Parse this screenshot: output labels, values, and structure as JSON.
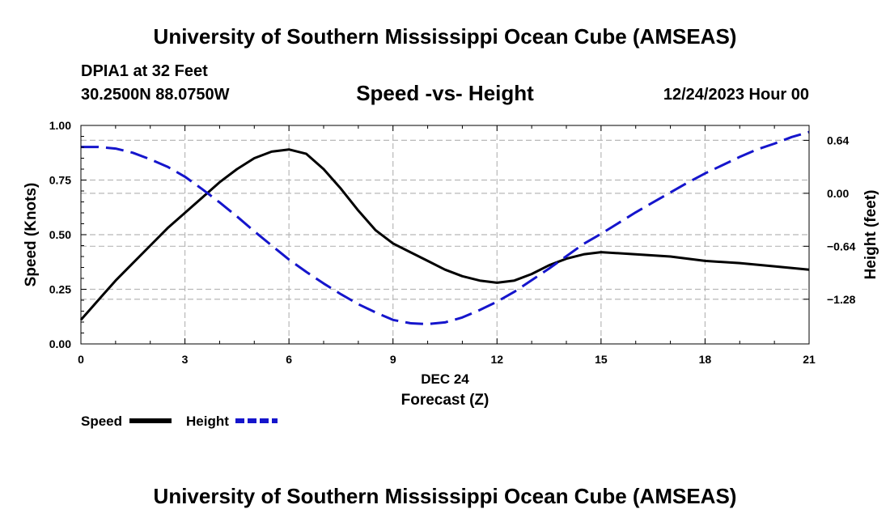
{
  "header": {
    "title": "University of Southern Mississippi Ocean Cube (AMSEAS)",
    "station": "DPIA1 at 32 Feet",
    "coords": "30.2500N  88.0750W",
    "subtitle": "Speed -vs- Height",
    "datetime": "12/24/2023 Hour 00"
  },
  "footer": {
    "title": "University of Southern Mississippi Ocean Cube (AMSEAS)"
  },
  "chart_data": {
    "type": "line",
    "title": "Speed -vs- Height",
    "xlabel_date": "DEC 24",
    "xlabel": "Forecast (Z)",
    "ylabel": "Speed (Knots)",
    "y2label": "Height (feet)",
    "xlim": [
      0,
      21
    ],
    "ylim": [
      0,
      1.0
    ],
    "y2lim": [
      -1.82,
      0.82
    ],
    "grid": true,
    "legend_position": "bottom-left",
    "x_ticks": [
      0,
      3,
      6,
      9,
      12,
      15,
      18,
      21
    ],
    "x_tick_labels": [
      "0",
      "3",
      "6",
      "9",
      "12",
      "15",
      "18",
      "21"
    ],
    "y_ticks": [
      0,
      0.25,
      0.5,
      0.75,
      1.0
    ],
    "y_tick_labels": [
      "0.00",
      "0.25",
      "0.50",
      "0.75",
      "1.00"
    ],
    "y2_ticks": [
      -1.28,
      -0.64,
      0.0,
      0.64
    ],
    "y2_tick_labels": [
      "−1.28",
      "−0.64",
      "0.00",
      "0.64"
    ],
    "series": [
      {
        "name": "Speed",
        "axis": "left",
        "color": "#000000",
        "dash": "solid",
        "x": [
          0,
          0.5,
          1,
          1.5,
          2,
          2.5,
          3,
          3.5,
          4,
          4.5,
          5,
          5.5,
          6,
          6.5,
          7,
          7.5,
          8,
          8.5,
          9,
          9.5,
          10,
          10.5,
          11,
          11.5,
          12,
          12.5,
          13,
          13.5,
          14,
          14.5,
          15,
          16,
          17,
          18,
          19,
          20,
          21
        ],
        "values": [
          0.11,
          0.2,
          0.29,
          0.37,
          0.45,
          0.53,
          0.6,
          0.67,
          0.74,
          0.8,
          0.85,
          0.88,
          0.89,
          0.87,
          0.8,
          0.71,
          0.61,
          0.52,
          0.46,
          0.42,
          0.38,
          0.34,
          0.31,
          0.29,
          0.28,
          0.29,
          0.32,
          0.36,
          0.39,
          0.41,
          0.42,
          0.41,
          0.4,
          0.38,
          0.37,
          0.355,
          0.34
        ]
      },
      {
        "name": "Height",
        "axis": "right",
        "color": "#1515cc",
        "dash": "dashed",
        "x": [
          0,
          0.5,
          1,
          1.5,
          2,
          2.5,
          3,
          3.5,
          4,
          4.5,
          5,
          5.5,
          6,
          6.5,
          7,
          7.5,
          8,
          8.5,
          9,
          9.5,
          10,
          10.5,
          11,
          11.5,
          12,
          12.5,
          13,
          13.5,
          14,
          14.5,
          15,
          15.5,
          16,
          16.5,
          17,
          17.5,
          18,
          18.5,
          19,
          19.5,
          20,
          20.5,
          21
        ],
        "values": [
          0.56,
          0.56,
          0.54,
          0.49,
          0.41,
          0.32,
          0.2,
          0.05,
          -0.11,
          -0.28,
          -0.46,
          -0.63,
          -0.8,
          -0.95,
          -1.09,
          -1.22,
          -1.34,
          -1.44,
          -1.53,
          -1.57,
          -1.58,
          -1.56,
          -1.5,
          -1.41,
          -1.31,
          -1.19,
          -1.05,
          -0.91,
          -0.76,
          -0.61,
          -0.49,
          -0.36,
          -0.23,
          -0.11,
          0.01,
          0.13,
          0.24,
          0.34,
          0.44,
          0.53,
          0.6,
          0.68,
          0.74
        ]
      }
    ]
  }
}
